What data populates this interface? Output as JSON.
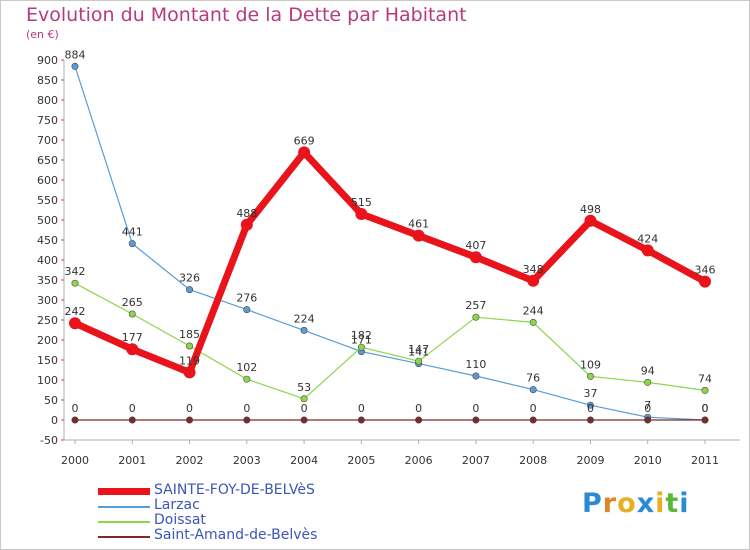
{
  "title": "Evolution du Montant de la Dette par Habitant",
  "subtitle": "(en €)",
  "brand": {
    "letters": [
      "P",
      "r",
      "o",
      "x",
      "i",
      "t",
      "i"
    ],
    "colors": [
      "#2a8ad6",
      "#e0842a",
      "#e6b020",
      "#2a8ad6",
      "#e6b020",
      "#5cb83a",
      "#2a8ad6"
    ]
  },
  "chart_data": {
    "type": "line",
    "x": [
      "2000",
      "2001",
      "2002",
      "2003",
      "2004",
      "2005",
      "2006",
      "2007",
      "2008",
      "2009",
      "2010",
      "2011"
    ],
    "ylim": [
      -50,
      900
    ],
    "yticks": [
      -50,
      0,
      50,
      100,
      150,
      200,
      250,
      300,
      350,
      400,
      450,
      500,
      550,
      600,
      650,
      700,
      750,
      800,
      850,
      900
    ],
    "grid": false,
    "legend_position": "bottom-left",
    "series": [
      {
        "name": "SAINTE-FOY-DE-BELVèS",
        "color": "#e8131b",
        "style": "thick",
        "values": [
          242,
          177,
          119,
          488,
          669,
          515,
          461,
          407,
          348,
          498,
          424,
          346
        ]
      },
      {
        "name": "Larzac",
        "color": "#5a9cd6",
        "style": "thin",
        "values": [
          884,
          441,
          326,
          276,
          224,
          171,
          141,
          110,
          76,
          37,
          7,
          0
        ]
      },
      {
        "name": "Doissat",
        "color": "#8cd64a",
        "style": "thin",
        "values": [
          342,
          265,
          185,
          102,
          53,
          182,
          147,
          257,
          244,
          109,
          94,
          74
        ]
      },
      {
        "name": "Saint-Amand-de-Belvès",
        "color": "#7a2a2a",
        "style": "thin",
        "values": [
          0,
          0,
          0,
          0,
          0,
          0,
          0,
          0,
          0,
          0,
          0,
          0
        ]
      }
    ]
  }
}
